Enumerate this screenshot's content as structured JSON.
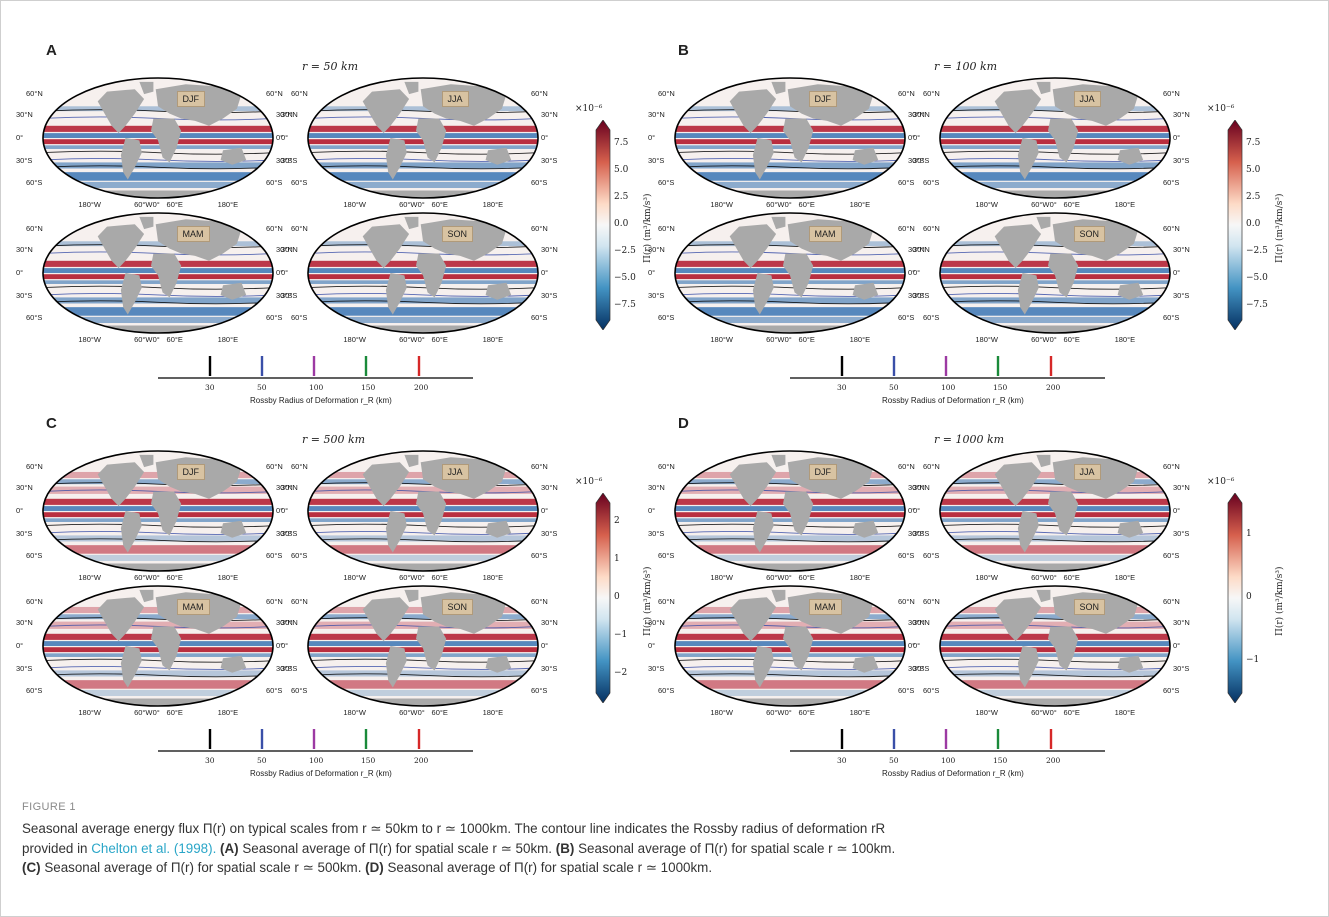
{
  "figure": {
    "label": "FIGURE 1",
    "caption": {
      "line1": "Seasonal average energy flux Π(r) on typical scales from r ≃ 50km to r ≃ 1000km. The contour line indicates the Rossby radius of deformation rR",
      "line2_prefix": "provided in ",
      "citation": "Chelton et al. (1998).",
      "line2_a_label": "(A)",
      "line2_a_text": " Seasonal average of Π(r) for spatial scale r ≃ 50km.",
      "line2_b_label": "(B)",
      "line2_b_text": " Seasonal average of Π(r) for spatial scale r ≃ 100km.",
      "line3_c_label": "(C)",
      "line3_c_text": " Seasonal average of Π(r) for spatial scale r ≃ 500km.",
      "line3_d_label": "(D)",
      "line3_d_text": " Seasonal average of Π(r) for spatial scale r ≃ 1000km."
    }
  },
  "panels": [
    {
      "letter": "A",
      "r_label": "r = 50 km",
      "exponent": "×10⁻⁶",
      "ticks": [
        "7.5",
        "5.0",
        "2.5",
        "0.0",
        "−2.5",
        "−5.0",
        "−7.5"
      ]
    },
    {
      "letter": "B",
      "r_label": "r = 100 km",
      "exponent": "×10⁻⁶",
      "ticks": [
        "7.5",
        "5.0",
        "2.5",
        "0.0",
        "−2.5",
        "−5.0",
        "−7.5"
      ]
    },
    {
      "letter": "C",
      "r_label": "r = 500 km",
      "exponent": "×10⁻⁶",
      "ticks": [
        "2",
        "1",
        "0",
        "−1",
        "−2"
      ]
    },
    {
      "letter": "D",
      "r_label": "r = 1000 km",
      "exponent": "×10⁻⁶",
      "ticks": [
        "1",
        "0",
        "−1"
      ]
    }
  ],
  "colorbar_label": "Π(r) (m³/km/s³)",
  "seasons": [
    "DJF",
    "JJA",
    "MAM",
    "SON"
  ],
  "lat_labels": [
    "60°N",
    "30°N",
    "0°",
    "30°S",
    "60°S"
  ],
  "lon_labels": [
    "180°W",
    "60°W",
    "0°",
    "60°E",
    "180°E"
  ],
  "rossby": {
    "title": "Rossby Radius of Deformation r_R (km)",
    "ticks": [
      "30",
      "50",
      "100",
      "150",
      "200"
    ],
    "colors": [
      "#000000",
      "#3a4fa8",
      "#9c3aa3",
      "#1a8a3a",
      "#d62828"
    ]
  },
  "colors": {
    "land": "#a9a9a9",
    "positive": "#b2182b",
    "negative": "#2166ac",
    "citation": "#2aa6c8"
  }
}
